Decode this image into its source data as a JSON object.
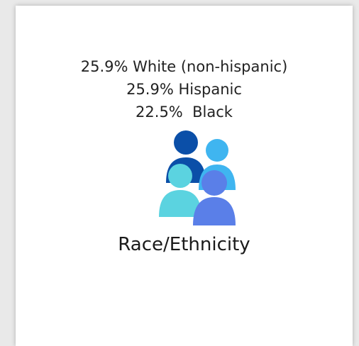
{
  "stats": [
    "25.9% White (non-hispanic)",
    "25.9% Hispanic",
    "22.5%  Black"
  ],
  "title": "Race/Ethnicity"
}
